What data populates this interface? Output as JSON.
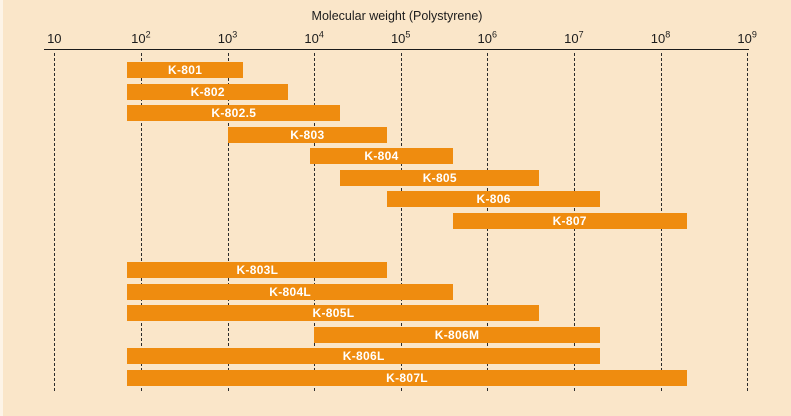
{
  "chart_data": {
    "type": "bar",
    "subtype": "horizontal-range-bars",
    "title": "Molecular weight (Polystyrene)",
    "x_scale": "log10",
    "x_range": [
      10,
      1000000000
    ],
    "grid": "dashed-vertical-per-decade",
    "legend": "none",
    "x_ticks": [
      {
        "mantissa": "10",
        "exponent": "",
        "value": 10
      },
      {
        "mantissa": "10",
        "exponent": "2",
        "value": 100
      },
      {
        "mantissa": "10",
        "exponent": "3",
        "value": 1000
      },
      {
        "mantissa": "10",
        "exponent": "4",
        "value": 10000
      },
      {
        "mantissa": "10",
        "exponent": "5",
        "value": 100000
      },
      {
        "mantissa": "10",
        "exponent": "6",
        "value": 1000000
      },
      {
        "mantissa": "10",
        "exponent": "7",
        "value": 10000000
      },
      {
        "mantissa": "10",
        "exponent": "8",
        "value": 100000000
      },
      {
        "mantissa": "10",
        "exponent": "9",
        "value": 1000000000
      }
    ],
    "series": [
      {
        "label": "K-801",
        "from": 70,
        "to": 1500,
        "group": 1
      },
      {
        "label": "K-802",
        "from": 70,
        "to": 5000,
        "group": 1
      },
      {
        "label": "K-802.5",
        "from": 70,
        "to": 20000,
        "group": 1
      },
      {
        "label": "K-803",
        "from": 1000,
        "to": 70000,
        "group": 1
      },
      {
        "label": "K-804",
        "from": 9000,
        "to": 400000,
        "group": 1
      },
      {
        "label": "K-805",
        "from": 20000,
        "to": 4000000,
        "group": 1
      },
      {
        "label": "K-806",
        "from": 70000,
        "to": 20000000,
        "group": 1
      },
      {
        "label": "K-807",
        "from": 400000,
        "to": 200000000,
        "group": 1
      },
      {
        "label": "K-803L",
        "from": 70,
        "to": 70000,
        "group": 2
      },
      {
        "label": "K-804L",
        "from": 70,
        "to": 400000,
        "group": 2
      },
      {
        "label": "K-805L",
        "from": 70,
        "to": 4000000,
        "group": 2
      },
      {
        "label": "K-806M",
        "from": 10000,
        "to": 20000000,
        "group": 2
      },
      {
        "label": "K-806L",
        "from": 70,
        "to": 20000000,
        "group": 2
      },
      {
        "label": "K-807L",
        "from": 70,
        "to": 200000000,
        "group": 2
      }
    ],
    "colors": {
      "bar": "#EF8C0F",
      "background": "#FAE6C9",
      "axis_text": "#1C1C1C",
      "gridline": "#2B2B2B",
      "bar_label": "#FFFFFF"
    }
  }
}
